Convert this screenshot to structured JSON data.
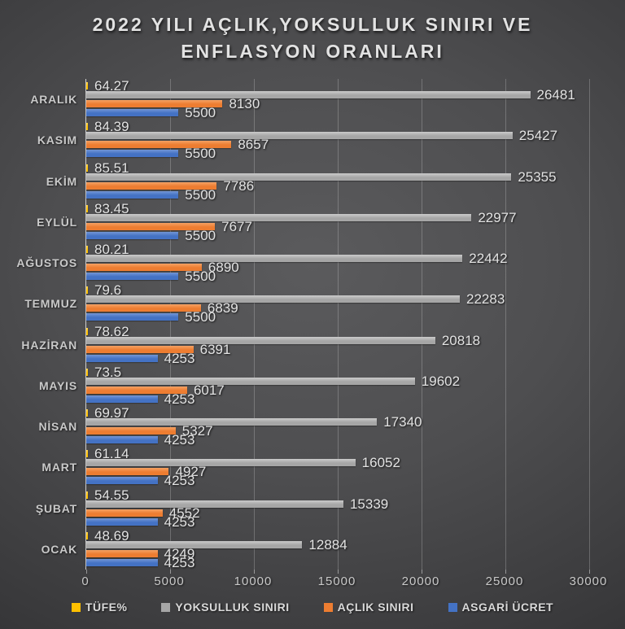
{
  "title": {
    "line1": "2022 YILI AÇLIK,YOKSULLUK SINIRI VE",
    "line2": "ENFLASYON ORANLARI"
  },
  "chart_data": {
    "type": "bar",
    "orientation": "horizontal",
    "title": "2022 YILI AÇLIK,YOKSULLUK SINIRI VE ENFLASYON ORANLARI",
    "categories": [
      "ARALIK",
      "KASIM",
      "EKİM",
      "EYLÜL",
      "AĞUSTOS",
      "TEMMUZ",
      "HAZİRAN",
      "MAYIS",
      "NİSAN",
      "MART",
      "ŞUBAT",
      "OCAK"
    ],
    "series": [
      {
        "name": "TÜFE%",
        "color": "#FFC000",
        "color_light": "#ffd34d",
        "values": [
          64.27,
          84.39,
          85.51,
          83.45,
          80.21,
          79.6,
          78.62,
          73.5,
          69.97,
          61.14,
          54.55,
          48.69
        ]
      },
      {
        "name": "YOKSULLUK SINIRI",
        "color": "#A6A6A6",
        "color_light": "#cbcbcb",
        "values": [
          26481,
          25427,
          25355,
          22977,
          22442,
          22283,
          20818,
          19602,
          17340,
          16052,
          15339,
          12884
        ]
      },
      {
        "name": "AÇLIK SINIRI",
        "color": "#ED7D31",
        "color_light": "#f5a163",
        "values": [
          8130,
          8657,
          7786,
          7677,
          6890,
          6839,
          6391,
          6017,
          5327,
          4927,
          4552,
          4249
        ]
      },
      {
        "name": "ASGARİ ÜCRET",
        "color": "#4472C4",
        "color_light": "#7396d6",
        "values": [
          5500,
          5500,
          5500,
          5500,
          5500,
          5500,
          4253,
          4253,
          4253,
          4253,
          4253,
          4253
        ]
      }
    ],
    "xlim": [
      0,
      30000
    ],
    "x_ticks": [
      "0",
      "5000",
      "10000",
      "15000",
      "20000",
      "25000",
      "30000"
    ],
    "grid": true,
    "legend_position": "bottom",
    "background_colors": {
      "center": "#5b5b5d",
      "edge": "#252527"
    }
  }
}
